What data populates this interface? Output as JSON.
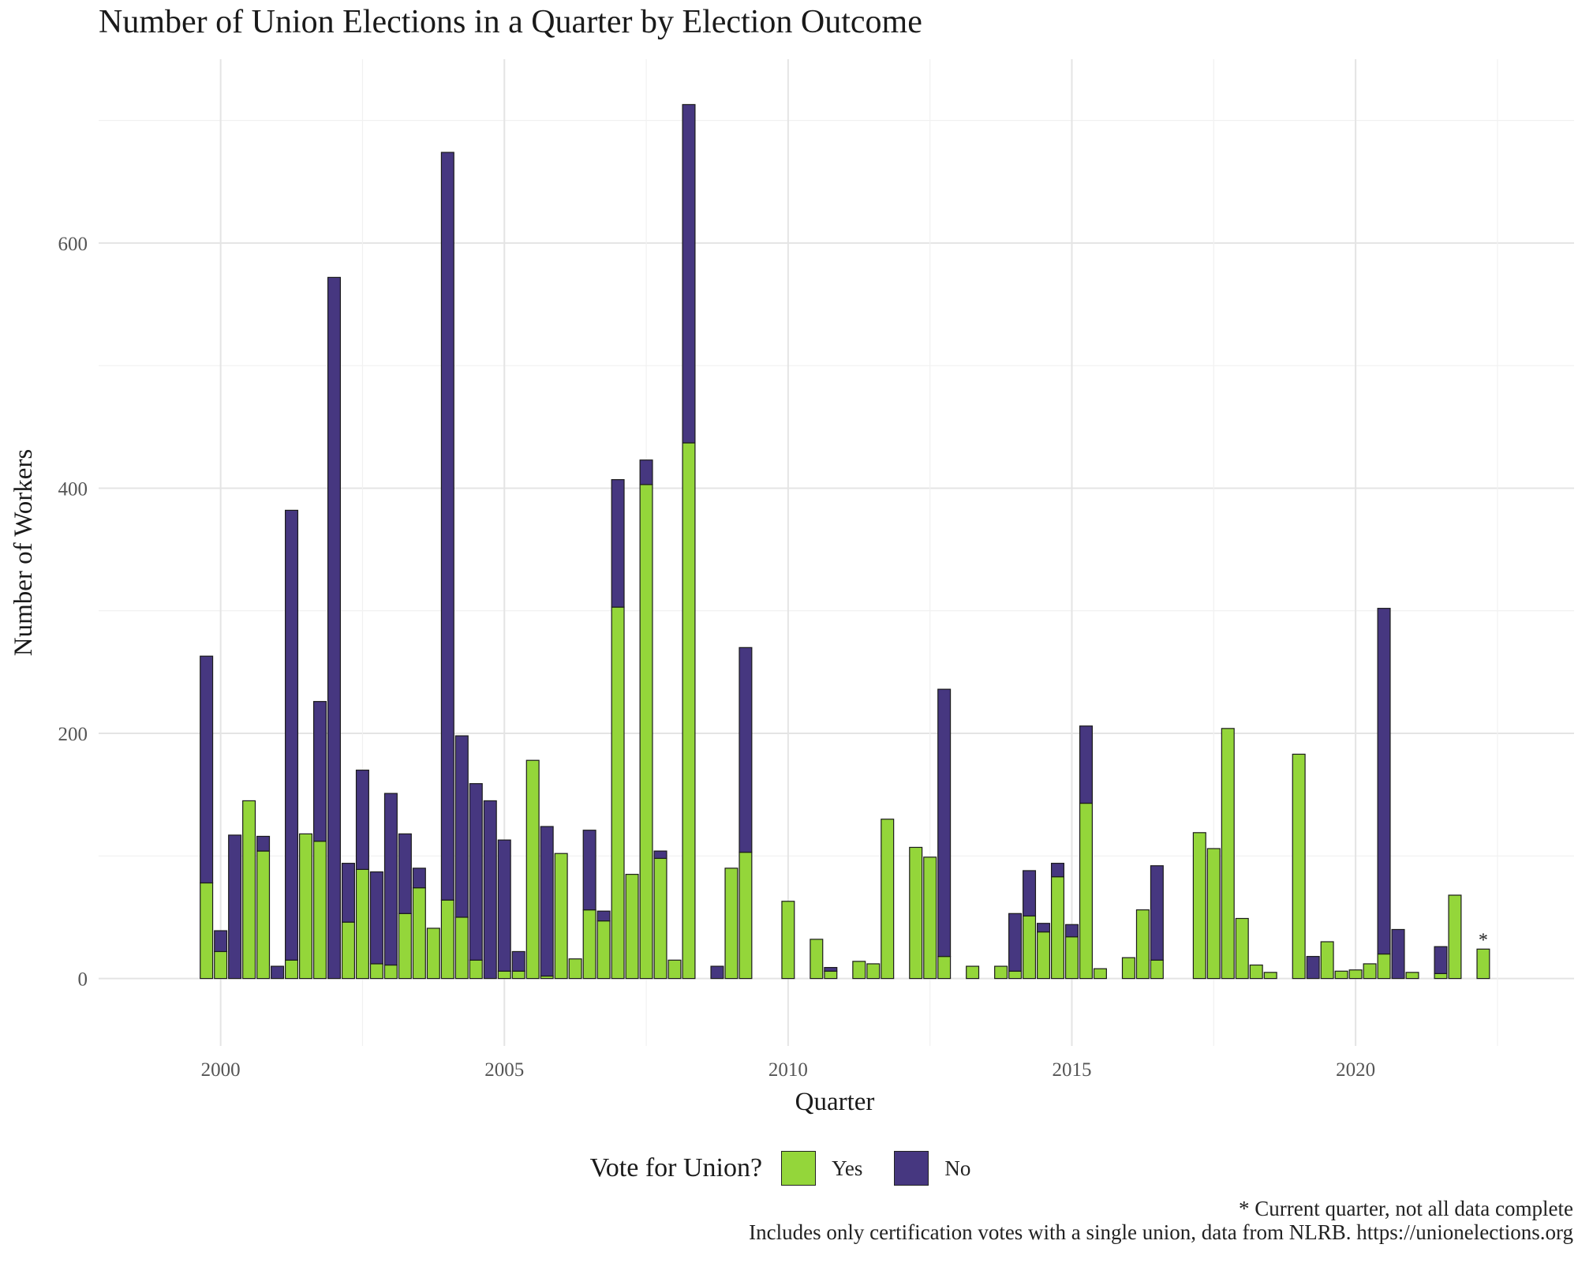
{
  "chart_data": {
    "type": "bar",
    "stacked": true,
    "title": "Number of Union Elections in a Quarter by Election Outcome",
    "xlabel": "Quarter",
    "ylabel": "Number of Workers",
    "x_ticks": [
      "2000",
      "2005",
      "2010",
      "2015",
      "2020"
    ],
    "y_ticks": [
      "0",
      "200",
      "400",
      "600"
    ],
    "xlim": [
      1997.85,
      2023.85
    ],
    "ylim": [
      -55,
      750
    ],
    "legend": {
      "title": "Vote for Union?",
      "position": "bottom"
    },
    "annotation": "*",
    "annotation_x": 2022.25,
    "grid": true,
    "series": [
      {
        "name": "Yes",
        "color": "#94d63a",
        "points": [
          [
            1999.75,
            78
          ],
          [
            2000,
            22
          ],
          [
            2000.25,
            0
          ],
          [
            2000.5,
            145
          ],
          [
            2000.75,
            104
          ],
          [
            2001,
            0
          ],
          [
            2001.25,
            15
          ],
          [
            2001.5,
            118
          ],
          [
            2001.75,
            112
          ],
          [
            2002,
            0
          ],
          [
            2002.25,
            46
          ],
          [
            2002.5,
            89
          ],
          [
            2002.75,
            12
          ],
          [
            2003,
            11
          ],
          [
            2003.25,
            53
          ],
          [
            2003.5,
            74
          ],
          [
            2003.75,
            41
          ],
          [
            2004,
            64
          ],
          [
            2004.25,
            50
          ],
          [
            2004.5,
            15
          ],
          [
            2004.75,
            0
          ],
          [
            2005,
            6
          ],
          [
            2005.25,
            6
          ],
          [
            2005.5,
            178
          ],
          [
            2005.75,
            2
          ],
          [
            2006,
            102
          ],
          [
            2006.25,
            16
          ],
          [
            2006.5,
            56
          ],
          [
            2006.75,
            47
          ],
          [
            2007,
            303
          ],
          [
            2007.25,
            85
          ],
          [
            2007.5,
            403
          ],
          [
            2007.75,
            98
          ],
          [
            2008,
            15
          ],
          [
            2008.25,
            437
          ],
          [
            2008.75,
            0
          ],
          [
            2009,
            90
          ],
          [
            2009.25,
            103
          ],
          [
            2010,
            63
          ],
          [
            2010.5,
            32
          ],
          [
            2010.75,
            6
          ],
          [
            2011.25,
            14
          ],
          [
            2011.5,
            12
          ],
          [
            2011.75,
            130
          ],
          [
            2012.25,
            107
          ],
          [
            2012.5,
            99
          ],
          [
            2012.75,
            18
          ],
          [
            2013.25,
            10
          ],
          [
            2013.75,
            10
          ],
          [
            2014,
            6
          ],
          [
            2014.25,
            51
          ],
          [
            2014.5,
            38
          ],
          [
            2014.75,
            83
          ],
          [
            2015,
            34
          ],
          [
            2015.25,
            143
          ],
          [
            2015.5,
            8
          ],
          [
            2016,
            17
          ],
          [
            2016.25,
            56
          ],
          [
            2016.5,
            15
          ],
          [
            2017.25,
            119
          ],
          [
            2017.5,
            106
          ],
          [
            2017.75,
            204
          ],
          [
            2018,
            49
          ],
          [
            2018.25,
            11
          ],
          [
            2018.5,
            5
          ],
          [
            2019,
            183
          ],
          [
            2019.25,
            0
          ],
          [
            2019.5,
            30
          ],
          [
            2019.75,
            6
          ],
          [
            2020,
            7
          ],
          [
            2020.25,
            12
          ],
          [
            2020.5,
            20
          ],
          [
            2020.75,
            0
          ],
          [
            2021,
            5
          ],
          [
            2021.5,
            4
          ],
          [
            2021.75,
            68
          ],
          [
            2022.25,
            24
          ]
        ]
      },
      {
        "name": "No",
        "color": "#463780",
        "points": [
          [
            1999.75,
            185
          ],
          [
            2000,
            17
          ],
          [
            2000.25,
            117
          ],
          [
            2000.5,
            0
          ],
          [
            2000.75,
            12
          ],
          [
            2001,
            10
          ],
          [
            2001.25,
            367
          ],
          [
            2001.5,
            0
          ],
          [
            2001.75,
            114
          ],
          [
            2002,
            572
          ],
          [
            2002.25,
            48
          ],
          [
            2002.5,
            81
          ],
          [
            2002.75,
            75
          ],
          [
            2003,
            140
          ],
          [
            2003.25,
            65
          ],
          [
            2003.5,
            16
          ],
          [
            2003.75,
            0
          ],
          [
            2004,
            610
          ],
          [
            2004.25,
            148
          ],
          [
            2004.5,
            144
          ],
          [
            2004.75,
            145
          ],
          [
            2005,
            107
          ],
          [
            2005.25,
            16
          ],
          [
            2005.5,
            0
          ],
          [
            2005.75,
            122
          ],
          [
            2006,
            0
          ],
          [
            2006.25,
            0
          ],
          [
            2006.5,
            65
          ],
          [
            2006.75,
            8
          ],
          [
            2007,
            104
          ],
          [
            2007.25,
            0
          ],
          [
            2007.5,
            20
          ],
          [
            2007.75,
            6
          ],
          [
            2008,
            0
          ],
          [
            2008.25,
            276
          ],
          [
            2008.75,
            10
          ],
          [
            2009,
            0
          ],
          [
            2009.25,
            167
          ],
          [
            2010,
            0
          ],
          [
            2010.5,
            0
          ],
          [
            2010.75,
            3
          ],
          [
            2011.25,
            0
          ],
          [
            2011.5,
            0
          ],
          [
            2011.75,
            0
          ],
          [
            2012.25,
            0
          ],
          [
            2012.5,
            0
          ],
          [
            2012.75,
            218
          ],
          [
            2013.25,
            0
          ],
          [
            2013.75,
            0
          ],
          [
            2014,
            47
          ],
          [
            2014.25,
            37
          ],
          [
            2014.5,
            7
          ],
          [
            2014.75,
            11
          ],
          [
            2015,
            10
          ],
          [
            2015.25,
            63
          ],
          [
            2015.5,
            0
          ],
          [
            2016,
            0
          ],
          [
            2016.25,
            0
          ],
          [
            2016.5,
            77
          ],
          [
            2017.25,
            0
          ],
          [
            2017.5,
            0
          ],
          [
            2017.75,
            0
          ],
          [
            2018,
            0
          ],
          [
            2018.25,
            0
          ],
          [
            2018.5,
            0
          ],
          [
            2019,
            0
          ],
          [
            2019.25,
            18
          ],
          [
            2019.5,
            0
          ],
          [
            2019.75,
            0
          ],
          [
            2020,
            0
          ],
          [
            2020.25,
            0
          ],
          [
            2020.5,
            282
          ],
          [
            2020.75,
            40
          ],
          [
            2021,
            0
          ],
          [
            2021.5,
            22
          ],
          [
            2021.75,
            0
          ],
          [
            2022.25,
            0
          ]
        ]
      }
    ]
  },
  "caption": {
    "line1": "* Current quarter, not all data complete",
    "line2": "Includes only certification votes with a single union, data from NLRB. https://unionelections.org"
  }
}
